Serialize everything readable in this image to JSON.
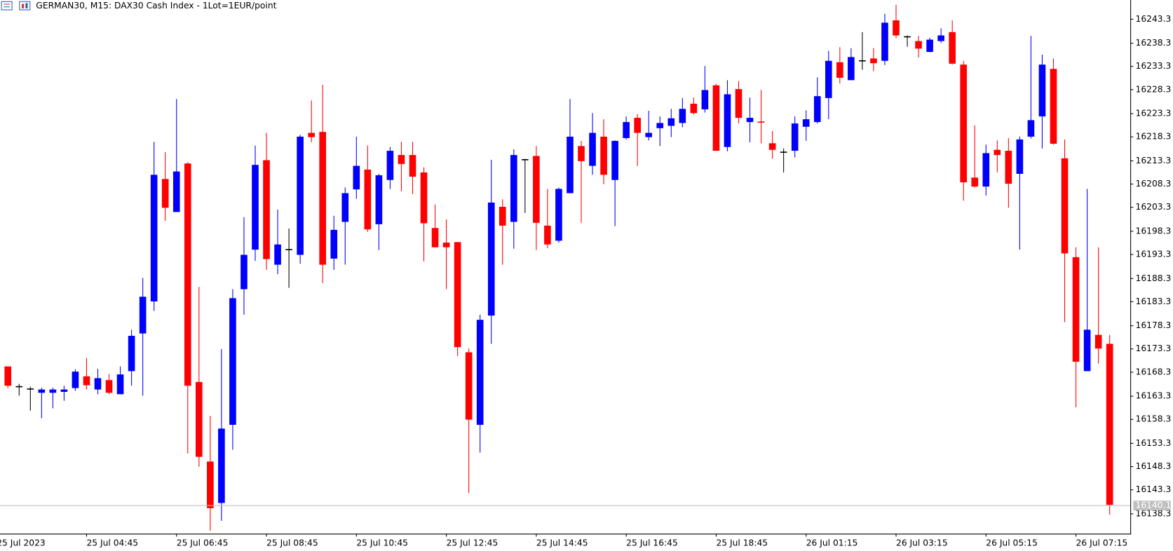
{
  "chart_data": {
    "type": "candlestick",
    "title": "GERMAN30, M15:  DAX30 Cash Index  - 1Lot=1EUR/point",
    "up_color": "#0000ff",
    "down_color": "#ff0000",
    "flat_color": "#000000",
    "last_price": 16140.1,
    "ylim": [
      16134.3,
      16247.3
    ],
    "yticks": [
      16138.3,
      16143.3,
      16148.3,
      16153.3,
      16158.3,
      16163.3,
      16168.3,
      16173.3,
      16178.3,
      16183.3,
      16188.3,
      16193.3,
      16198.3,
      16203.3,
      16208.3,
      16213.3,
      16218.3,
      16223.3,
      16228.3,
      16233.3,
      16238.3,
      16243.3
    ],
    "categories": [
      "25 Jul 2023",
      null,
      null,
      null,
      null,
      null,
      null,
      null,
      "25 Jul 04:45",
      null,
      null,
      null,
      null,
      null,
      null,
      null,
      "25 Jul 06:45",
      null,
      null,
      null,
      null,
      null,
      null,
      null,
      "25 Jul 08:45",
      null,
      null,
      null,
      null,
      null,
      null,
      null,
      "25 Jul 10:45",
      null,
      null,
      null,
      null,
      null,
      null,
      null,
      "25 Jul 12:45",
      null,
      null,
      null,
      null,
      null,
      null,
      null,
      "25 Jul 14:45",
      null,
      null,
      null,
      null,
      null,
      null,
      null,
      "25 Jul 16:45",
      null,
      null,
      null,
      null,
      null,
      null,
      null,
      "25 Jul 18:45",
      null,
      null,
      null,
      null,
      null,
      null,
      null,
      "26 Jul 01:15",
      null,
      null,
      null,
      null,
      null,
      null,
      null,
      "26 Jul 03:15",
      null,
      null,
      null,
      null,
      null,
      null,
      null,
      "26 Jul 05:15",
      null,
      null,
      null,
      null,
      null,
      null,
      null,
      "26 Jul 07:15",
      null,
      null,
      null
    ],
    "open": [
      null,
      16169.5,
      16165.2,
      16164.7,
      16163.9,
      16163.9,
      16164.1,
      16164.9,
      16167.4,
      16164.6,
      16166.6,
      16163.6,
      16168.5,
      16176.5,
      16183.3,
      16209.3,
      16202.3,
      16212.6,
      16166.2,
      16149.3,
      16140.5,
      16157.1,
      16185.9,
      16194.3,
      16213.3,
      16191.1,
      16194.3,
      16193.2,
      16219.1,
      16219.3,
      16192.4,
      16200.2,
      16207.1,
      16211.3,
      16199.7,
      16209.1,
      16214.4,
      16214.4,
      16210.7,
      16198.9,
      16195.8,
      16195.9,
      16172.5,
      16157.1,
      16180.3,
      16203.4,
      16200.2,
      16213.4,
      16214.2,
      16199.4,
      16196.2,
      16206.3,
      16216.3,
      16212.1,
      16218.3,
      16209.1,
      16218.0,
      16222.3,
      16218.2,
      16220.1,
      16220.6,
      16221.2,
      16225.3,
      16224.1,
      16229.2,
      16216.1,
      16228.4,
      16221.4,
      16221.4,
      16216.9,
      16215.0,
      16215.3,
      16220.4,
      16221.4,
      16226.5,
      16234.1,
      16230.3,
      16234.4,
      16234.9,
      16234.4,
      16243.0,
      16239.5,
      16238.6,
      16236.3,
      16238.6,
      16240.5,
      16233.6,
      16209.6,
      16207.7,
      16215.5,
      16215.3,
      16210.4,
      16218.3,
      16222.6,
      16232.7,
      16213.7,
      16192.7,
      16168.5,
      16176.2,
      16174.3
    ],
    "high": [
      null,
      16169.5,
      16165.8,
      16165.2,
      16165.0,
      16165.0,
      16165.4,
      16168.9,
      16171.3,
      16169.0,
      16167.9,
      16169.5,
      16177.3,
      16188.3,
      16217.2,
      16215.0,
      16226.3,
      16212.9,
      16186.4,
      16159.0,
      16173.2,
      16185.9,
      16201.2,
      16216.4,
      16219.1,
      16202.8,
      16198.8,
      16218.7,
      16226.0,
      16229.3,
      16201.5,
      16207.5,
      16218.3,
      16216.4,
      16210.4,
      16216.1,
      16217.2,
      16217.2,
      16211.8,
      16203.9,
      16200.7,
      16195.9,
      16173.3,
      16180.5,
      16213.4,
      16205.0,
      16215.6,
      16213.6,
      16216.3,
      16207.2,
      16207.5,
      16226.3,
      16217.4,
      16223.3,
      16222.0,
      16217.5,
      16222.6,
      16223.1,
      16223.8,
      16222.6,
      16224.2,
      16226.5,
      16226.6,
      16233.3,
      16229.5,
      16230.3,
      16230.1,
      16226.6,
      16228.2,
      16219.5,
      16215.8,
      16222.6,
      16223.9,
      16230.9,
      16236.5,
      16237.3,
      16237.1,
      16240.5,
      16237.1,
      16244.4,
      16246.3,
      16239.8,
      16239.7,
      16239.3,
      16241.3,
      16243.0,
      16234.4,
      16220.7,
      16216.6,
      16217.5,
      16218.0,
      16218.3,
      16239.7,
      16235.7,
      16234.9,
      16217.7,
      16194.8,
      16207.2,
      16194.8,
      16176.2
    ],
    "low": [
      null,
      16164.9,
      16163.3,
      16160.1,
      16158.5,
      16160.6,
      16162.2,
      16164.3,
      16164.6,
      16163.6,
      16163.6,
      16163.6,
      16165.4,
      16163.3,
      16181.3,
      16200.4,
      16202.3,
      16151.0,
      16148.2,
      16134.6,
      16136.7,
      16151.8,
      16180.5,
      16191.9,
      16190.0,
      16189.1,
      16186.2,
      16191.3,
      16217.1,
      16187.2,
      16190.0,
      16191.1,
      16205.1,
      16198.1,
      16194.2,
      16207.2,
      16206.7,
      16206.1,
      16191.8,
      16194.8,
      16185.9,
      16171.7,
      16142.6,
      16151.2,
      16174.3,
      16191.1,
      16194.5,
      16202.1,
      16194.2,
      16194.6,
      16195.8,
      16206.3,
      16200.0,
      16210.2,
      16208.2,
      16199.3,
      16217.7,
      16212.1,
      16217.5,
      16216.3,
      16218.2,
      16220.3,
      16223.0,
      16223.4,
      16215.3,
      16215.2,
      16221.1,
      16217.1,
      16216.9,
      16213.6,
      16210.7,
      16213.9,
      16217.4,
      16221.1,
      16222.0,
      16229.6,
      16230.3,
      16232.5,
      16232.2,
      16233.5,
      16239.2,
      16237.4,
      16235.1,
      16236.2,
      16238.2,
      16233.6,
      16204.7,
      16207.5,
      16205.8,
      16210.7,
      16203.2,
      16194.3,
      16217.9,
      16215.8,
      16216.6,
      16178.9,
      16160.8,
      16168.5,
      16170.1,
      16138.0
    ],
    "close": [
      null,
      16165.4,
      16165.2,
      16164.7,
      16164.6,
      16164.6,
      16164.6,
      16168.4,
      16165.5,
      16167.0,
      16163.9,
      16167.8,
      16176.0,
      16184.3,
      16210.2,
      16203.2,
      16210.9,
      16165.4,
      16150.3,
      16139.4,
      16156.3,
      16184.0,
      16193.2,
      16212.3,
      16192.3,
      16195.4,
      16194.3,
      16218.3,
      16218.2,
      16191.1,
      16198.5,
      16206.3,
      16212.1,
      16198.6,
      16210.1,
      16215.3,
      16212.5,
      16209.8,
      16199.9,
      16194.8,
      16194.8,
      16173.6,
      16158.2,
      16179.4,
      16204.3,
      16199.4,
      16214.4,
      16213.4,
      16200.0,
      16195.4,
      16207.2,
      16218.3,
      16213.1,
      16219.1,
      16210.2,
      16217.4,
      16221.4,
      16219.1,
      16219.1,
      16221.2,
      16222.2,
      16224.2,
      16223.3,
      16228.2,
      16215.3,
      16227.3,
      16222.3,
      16222.3,
      16221.2,
      16215.5,
      16215.0,
      16221.1,
      16222.0,
      16226.9,
      16234.4,
      16230.8,
      16235.2,
      16234.4,
      16233.9,
      16242.5,
      16239.8,
      16239.5,
      16237.0,
      16238.9,
      16239.8,
      16233.8,
      16208.6,
      16207.7,
      16214.8,
      16214.4,
      16208.3,
      16217.7,
      16221.8,
      16233.6,
      16216.8,
      16193.5,
      16170.5,
      16177.3,
      16173.3,
      16140.1
    ]
  }
}
